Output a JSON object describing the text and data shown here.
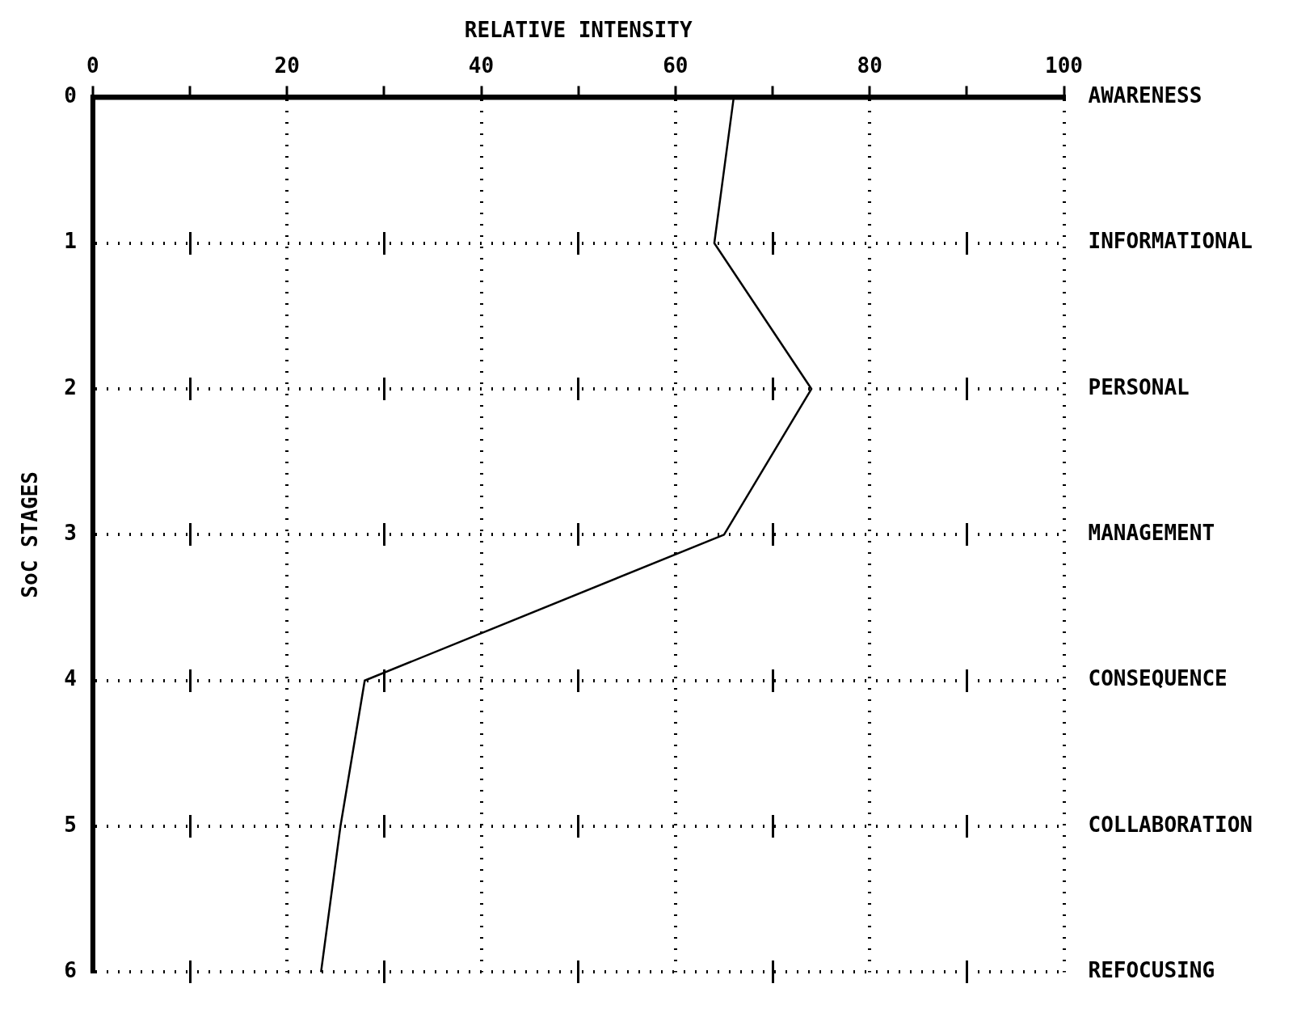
{
  "chart_data": {
    "type": "line",
    "orientation": "horizontal",
    "xlabel": "RELATIVE INTENSITY",
    "ylabel": "SoC STAGES",
    "xlim": [
      0,
      100
    ],
    "xticks": [
      0,
      {
        "value": 10,
        "label": null
      },
      20,
      {
        "value": 30,
        "label": null
      },
      40,
      {
        "value": 50,
        "label": null
      },
      60,
      {
        "value": 70,
        "label": null
      },
      80,
      {
        "value": 90,
        "label": null
      },
      100
    ],
    "categories": [
      "0",
      "1",
      "2",
      "3",
      "4",
      "5",
      "6"
    ],
    "y2_categories": [
      "AWARENESS",
      "INFORMATIONAL",
      "PERSONAL",
      "MANAGEMENT",
      "CONSEQUENCE",
      "COLLABORATION",
      "REFOCUSING"
    ],
    "grid": true,
    "legend": false,
    "marker": "none",
    "line_style": "solid",
    "series": [
      {
        "color": "#000000",
        "values": [
          66,
          64,
          74,
          65,
          28,
          25.5,
          23.5
        ]
      }
    ]
  }
}
